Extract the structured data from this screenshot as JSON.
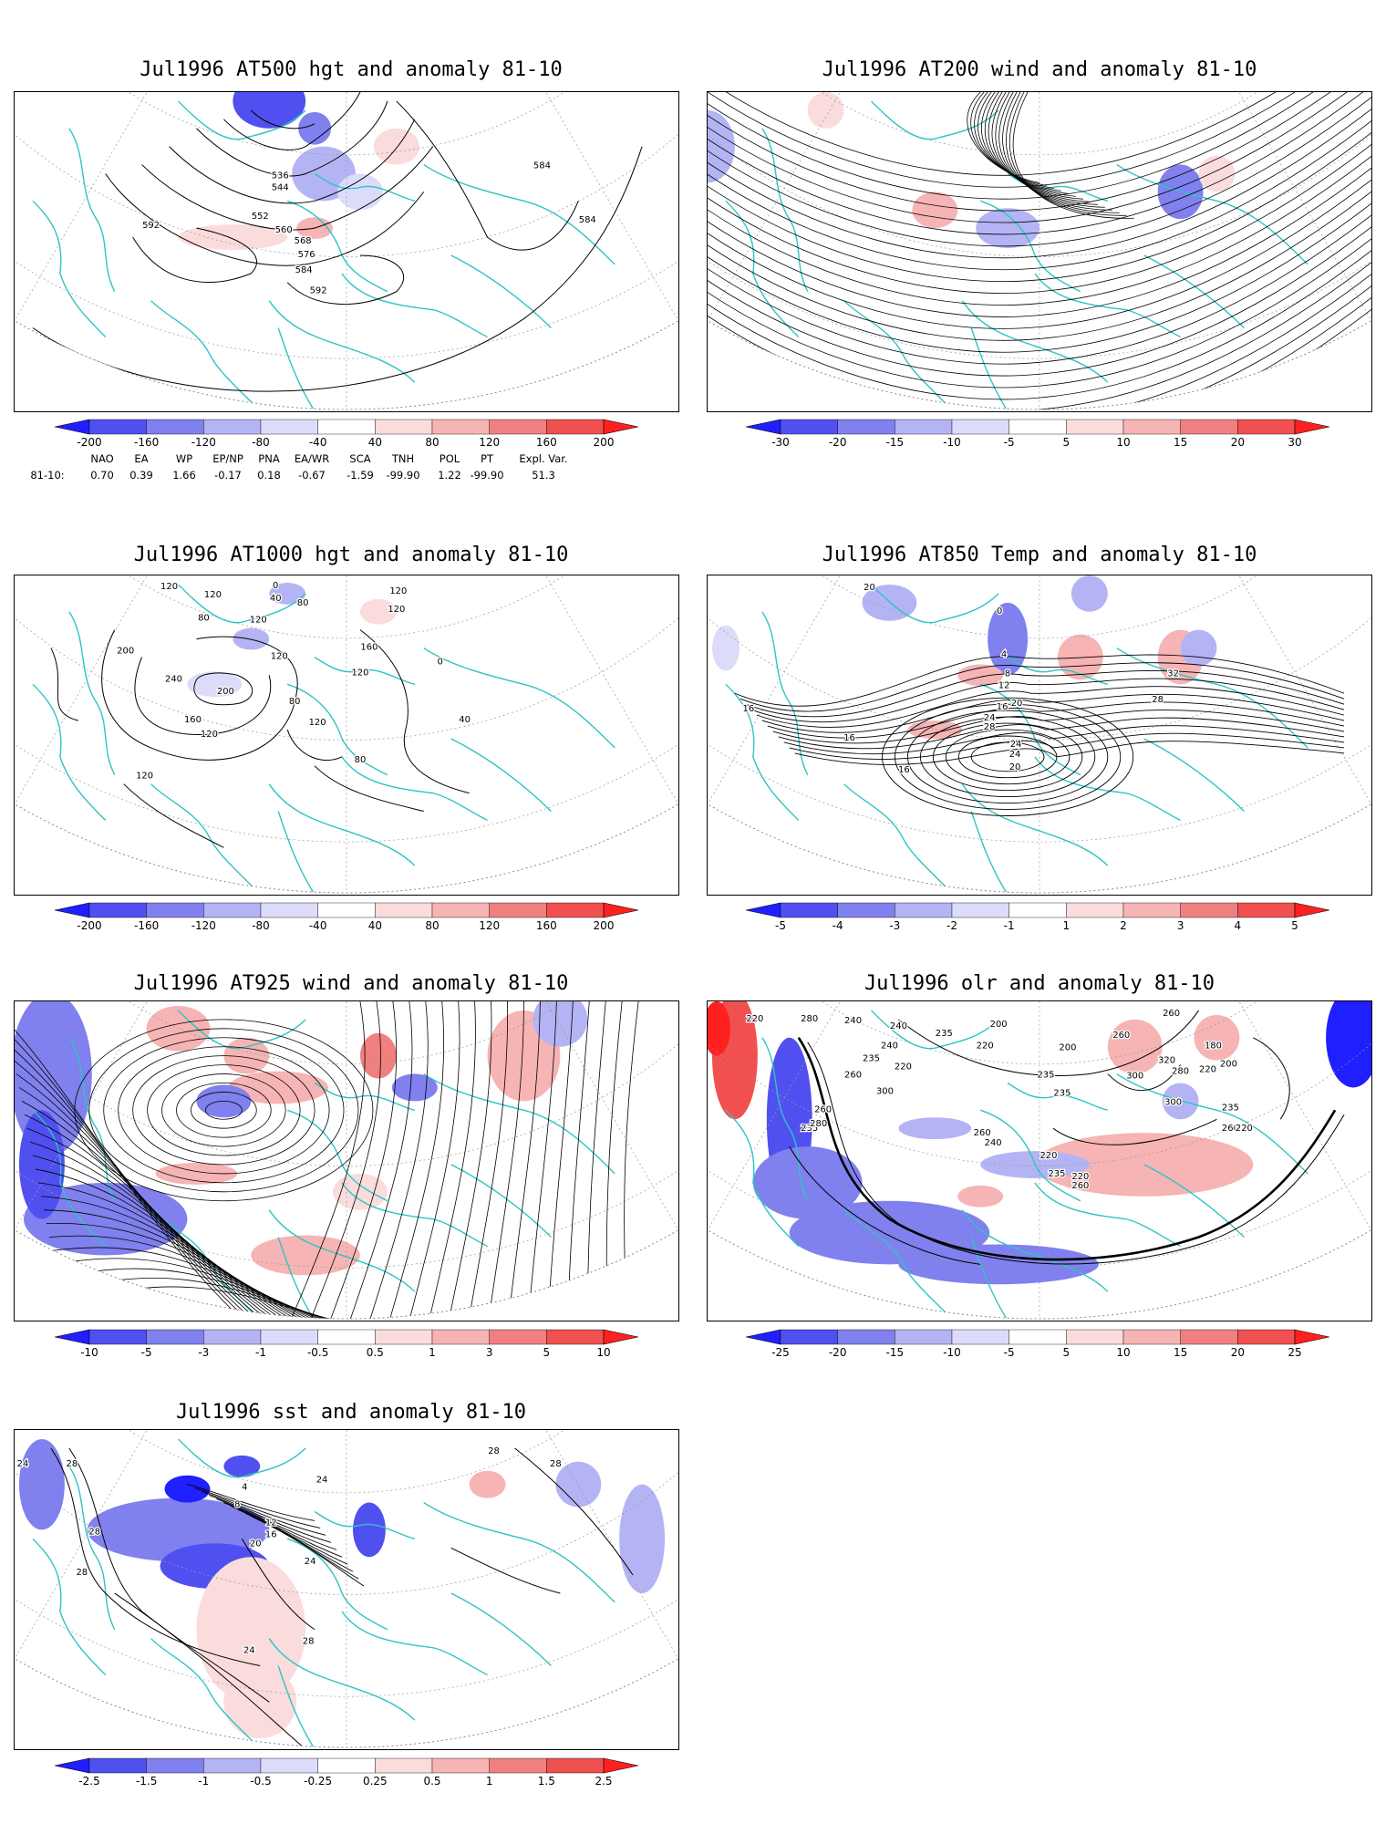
{
  "panels": [
    {
      "id": "p1",
      "title": "Jul1996 AT500 hgt and anomaly 81-10",
      "contour_labels": [
        "536",
        "544",
        "552",
        "560",
        "568",
        "576",
        "584",
        "592",
        "584",
        "592",
        "584"
      ],
      "colorbar": [
        "-200",
        "-160",
        "-120",
        "-80",
        "-40",
        "40",
        "80",
        "120",
        "160",
        "200"
      ]
    },
    {
      "id": "p2",
      "title": "Jul1996 AT200 wind and anomaly 81-10",
      "contour_labels": [],
      "colorbar": [
        "-30",
        "-20",
        "-15",
        "-10",
        "-5",
        "5",
        "10",
        "15",
        "20",
        "30"
      ]
    },
    {
      "id": "p3",
      "title": "Jul1996 AT1000 hgt and anomaly 81-10",
      "contour_labels": [
        "120",
        "120",
        "0",
        "40",
        "80",
        "80",
        "120",
        "160",
        "200",
        "240",
        "200",
        "160",
        "120",
        "120",
        "120",
        "80",
        "120",
        "80",
        "120",
        "40",
        "0",
        "120",
        "120"
      ],
      "colorbar": [
        "-200",
        "-160",
        "-120",
        "-80",
        "-40",
        "40",
        "80",
        "120",
        "160",
        "200"
      ]
    },
    {
      "id": "p4",
      "title": "Jul1996 AT850 Temp and anomaly 81-10",
      "contour_labels": [
        "20",
        "0",
        "4",
        "8",
        "12",
        "16",
        "20",
        "24",
        "28",
        "24",
        "20",
        "16",
        "16",
        "16",
        "32",
        "28",
        "16",
        "24"
      ],
      "colorbar": [
        "-5",
        "-4",
        "-3",
        "-2",
        "-1",
        "1",
        "2",
        "3",
        "4",
        "5"
      ]
    },
    {
      "id": "p5",
      "title": "Jul1996 AT925 wind and anomaly 81-10",
      "contour_labels": [],
      "colorbar": [
        "-10",
        "-5",
        "-3",
        "-1",
        "-0.5",
        "0.5",
        "1",
        "3",
        "5",
        "10"
      ]
    },
    {
      "id": "p6",
      "title": "Jul1996 olr and anomaly 81-10",
      "contour_labels": [
        "220",
        "280",
        "240",
        "235",
        "240",
        "200",
        "220",
        "240",
        "235",
        "260",
        "220",
        "235",
        "200",
        "180",
        "220",
        "200",
        "260",
        "260",
        "260",
        "300",
        "320",
        "300",
        "280",
        "235",
        "220",
        "235",
        "260",
        "280",
        "300",
        "235",
        "260",
        "240",
        "220",
        "235",
        "220",
        "260"
      ],
      "colorbar": [
        "-25",
        "-20",
        "-15",
        "-10",
        "-5",
        "5",
        "10",
        "15",
        "20",
        "25"
      ]
    },
    {
      "id": "p7",
      "title": "Jul1996 sst and anomaly 81-10",
      "contour_labels": [
        "24",
        "28",
        "28",
        "28",
        "4",
        "8",
        "12",
        "16",
        "20",
        "24",
        "24",
        "28",
        "28",
        "28",
        "24"
      ],
      "colorbar": [
        "-2.5",
        "-1.5",
        "-1",
        "-0.5",
        "-0.25",
        "0.25",
        "0.5",
        "1",
        "1.5",
        "2.5"
      ]
    }
  ],
  "teleconnections": {
    "headers": [
      "NAO",
      "EA",
      "WP",
      "EP/NP",
      "PNA",
      "EA/WR",
      "SCA",
      "TNH",
      "POL",
      "PT",
      "Expl. Var."
    ],
    "row_label": "81-10:",
    "values": [
      "0.70",
      "0.39",
      "1.66",
      "-0.17",
      "0.18",
      "-0.67",
      "-1.59",
      "-99.90",
      "1.22",
      "-99.90",
      "51.3"
    ]
  },
  "colors": {
    "coast": "#2ec4c4",
    "neg": [
      "#1f1fff",
      "#5050f0",
      "#8080ee",
      "#b4b4f4",
      "#dcdcfa"
    ],
    "pos": [
      "#fadcdc",
      "#f6b4b4",
      "#f08080",
      "#f05050",
      "#ff2020"
    ]
  }
}
